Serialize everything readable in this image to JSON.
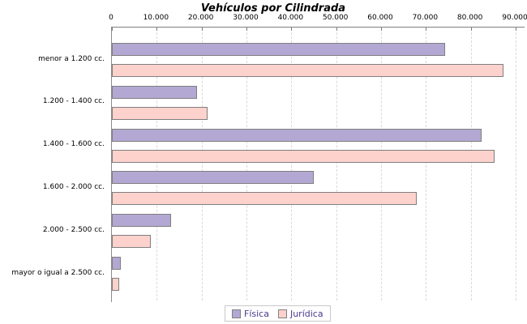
{
  "title": "Vehículos por Cilindrada",
  "colors": {
    "fisica_fill": "#b3a8d3",
    "juridica_fill": "#fdd1cc",
    "bar_border": "#7f7f7f",
    "axis_line": "#808080",
    "gridline": "#d9d9d9",
    "legend_text": "#4a3a8c",
    "text": "#000000",
    "background": "#ffffff"
  },
  "chart_data": {
    "type": "bar",
    "orientation": "horizontal",
    "title": "Vehículos por Cilindrada",
    "categories": [
      "menor a 1.200 cc.",
      "1.200 - 1.400 cc.",
      "1.400 - 1.600 cc.",
      "1.600 - 2.000 cc.",
      "2.000 - 2.500 cc.",
      "mayor o igual a 2.500 cc."
    ],
    "series": [
      {
        "name": "Física",
        "values": [
          74000,
          18600,
          82000,
          44600,
          12800,
          1700
        ]
      },
      {
        "name": "Jurídica",
        "values": [
          87000,
          21000,
          85000,
          67500,
          8300,
          1200
        ]
      }
    ],
    "xlim": [
      0,
      90000
    ],
    "x_tick_values": [
      0,
      10000,
      20000,
      30000,
      40000,
      50000,
      60000,
      70000,
      80000,
      90000
    ],
    "x_tick_labels": [
      "0",
      "10.000",
      "20.000",
      "30.000",
      "40.000",
      "50.000",
      "60.000",
      "70.000",
      "80.000",
      "90.000"
    ],
    "grid": "vertical-dashed",
    "legend_position": "bottom-center",
    "xlabel": "",
    "ylabel": ""
  },
  "legend": {
    "items": [
      {
        "label": "Física"
      },
      {
        "label": "Jurídica"
      }
    ]
  }
}
